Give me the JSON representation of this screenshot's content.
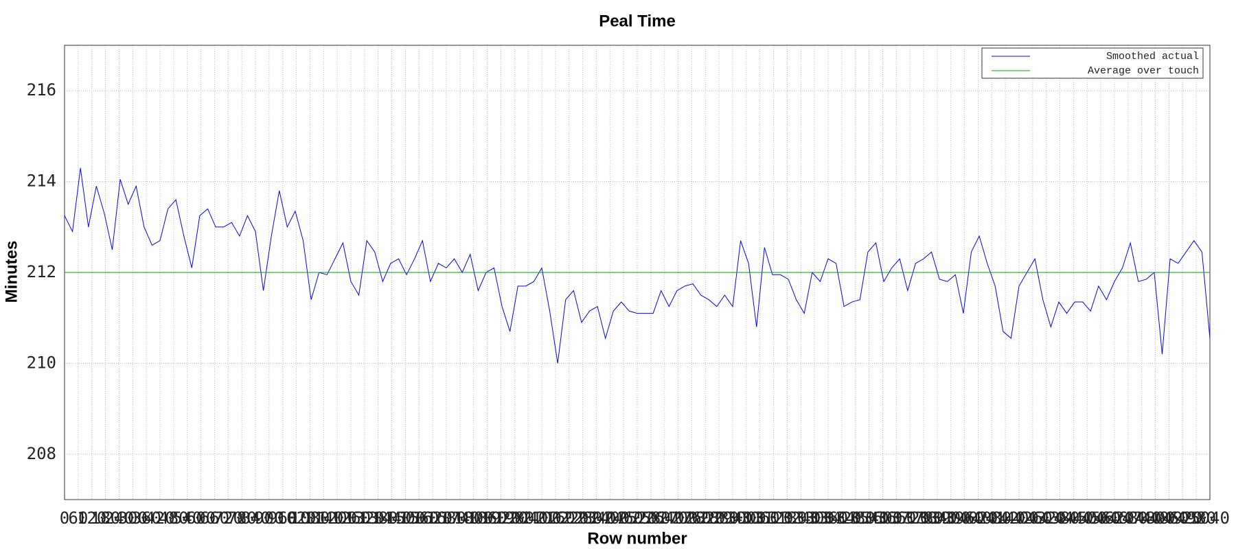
{
  "chart_data": {
    "type": "line",
    "title": "Peal Time",
    "x_label": "Row number",
    "y_label": "Minutes",
    "xlim": [
      0,
      5040
    ],
    "ylim": [
      207,
      217
    ],
    "yticks": [
      208,
      210,
      212,
      214,
      216
    ],
    "xticks": [
      0,
      60,
      120,
      180,
      240,
      300,
      360,
      420,
      480,
      540,
      600,
      660,
      720,
      780,
      840,
      900,
      960,
      1020,
      1080,
      1140,
      1200,
      1260,
      1320,
      1380,
      1440,
      1500,
      1560,
      1620,
      1680,
      1740,
      1800,
      1860,
      1920,
      1980,
      2040,
      2100,
      2160,
      2220,
      2280,
      2340,
      2400,
      2460,
      2520,
      2580,
      2640,
      2700,
      2760,
      2820,
      2880,
      2940,
      3000,
      3060,
      3120,
      3180,
      3240,
      3300,
      3360,
      3420,
      3480,
      3540,
      3600,
      3660,
      3720,
      3780,
      3840,
      3900,
      3960,
      4020,
      4080,
      4140,
      4200,
      4260,
      4320,
      4380,
      4440,
      4500,
      4560,
      4620,
      4680,
      4740,
      4800,
      4860,
      4920,
      4980,
      5040
    ],
    "grid": true,
    "legend": "upper right",
    "series": [
      {
        "name": "Smoothed actual",
        "color": "#0000ff",
        "x": [
          0,
          35,
          70,
          105,
          140,
          175,
          210,
          245,
          280,
          315,
          350,
          385,
          420,
          455,
          490,
          525,
          560,
          595,
          630,
          665,
          700,
          735,
          770,
          805,
          840,
          875,
          910,
          945,
          980,
          1015,
          1050,
          1085,
          1120,
          1155,
          1190,
          1225,
          1260,
          1295,
          1330,
          1365,
          1400,
          1435,
          1470,
          1505,
          1540,
          1575,
          1610,
          1645,
          1680,
          1715,
          1750,
          1785,
          1820,
          1855,
          1890,
          1925,
          1960,
          1995,
          2030,
          2065,
          2100,
          2135,
          2170,
          2205,
          2240,
          2275,
          2310,
          2345,
          2380,
          2415,
          2450,
          2485,
          2520,
          2555,
          2590,
          2625,
          2660,
          2695,
          2730,
          2765,
          2800,
          2835,
          2870,
          2905,
          2940,
          2975,
          3010,
          3045,
          3080,
          3115,
          3150,
          3185,
          3220,
          3255,
          3290,
          3325,
          3360,
          3395,
          3430,
          3465,
          3500,
          3535,
          3570,
          3605,
          3640,
          3675,
          3710,
          3745,
          3780,
          3815,
          3850,
          3885,
          3920,
          3955,
          3990,
          4025,
          4060,
          4095,
          4130,
          4165,
          4200,
          4235,
          4270,
          4305,
          4340,
          4375,
          4410,
          4445,
          4480,
          4515,
          4550,
          4585,
          4620,
          4655,
          4690,
          4725,
          4760,
          4795,
          4830,
          4865,
          4900,
          4935,
          4970,
          5005,
          5040
        ],
        "values": [
          213.25,
          212.9,
          214.3,
          213.0,
          213.9,
          213.3,
          212.5,
          214.05,
          213.5,
          213.9,
          213.0,
          212.6,
          212.7,
          213.4,
          213.6,
          212.8,
          212.1,
          213.25,
          213.4,
          213.0,
          213.0,
          213.1,
          212.8,
          213.25,
          212.9,
          211.6,
          212.8,
          213.8,
          213.0,
          213.35,
          212.7,
          211.4,
          212.0,
          211.95,
          212.3,
          212.65,
          211.8,
          211.5,
          212.7,
          212.45,
          211.8,
          212.2,
          212.3,
          211.95,
          212.3,
          212.7,
          211.8,
          212.2,
          212.1,
          212.3,
          212.0,
          212.4,
          211.6,
          212.0,
          212.1,
          211.25,
          210.7,
          211.7,
          211.7,
          211.8,
          212.1,
          211.15,
          210.0,
          211.4,
          211.6,
          210.9,
          211.15,
          211.25,
          210.55,
          211.15,
          211.35,
          211.15,
          211.1,
          211.1,
          211.1,
          211.6,
          211.25,
          211.6,
          211.7,
          211.75,
          211.5,
          211.4,
          211.25,
          211.5,
          211.25,
          212.7,
          212.2,
          210.8,
          212.55,
          211.95,
          211.95,
          211.85,
          211.4,
          211.1,
          212.0,
          211.8,
          212.3,
          212.2,
          211.25,
          211.35,
          211.4,
          212.45,
          212.65,
          211.8,
          212.1,
          212.3,
          211.6,
          212.2,
          212.3,
          212.45,
          211.85,
          211.8,
          211.95,
          211.1,
          212.45,
          212.8,
          212.2,
          211.7,
          210.7,
          210.55,
          211.7,
          212.0,
          212.3,
          211.4,
          210.8,
          211.35,
          211.1,
          211.35,
          211.35,
          211.15,
          211.7,
          211.4,
          211.8,
          212.1,
          212.65,
          211.8,
          211.85,
          212.0,
          210.2,
          212.3,
          212.2,
          212.45,
          212.7,
          212.45,
          210.55
        ]
      },
      {
        "name": "Average over touch",
        "color": "#00a000",
        "x": [
          0,
          5040
        ],
        "values": [
          212,
          212
        ]
      }
    ]
  }
}
